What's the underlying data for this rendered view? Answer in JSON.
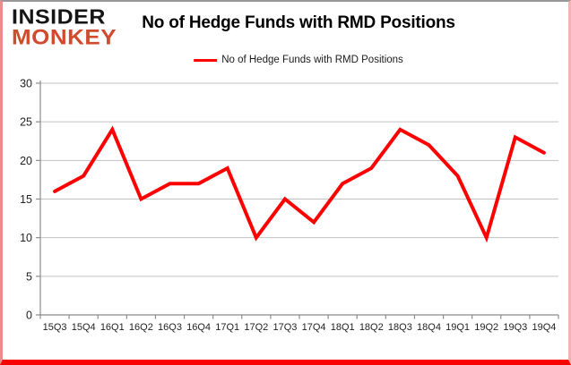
{
  "logo": {
    "line1": "INSIDER",
    "line2": "MONKEY"
  },
  "header": {
    "title": "No of Hedge Funds with RMD Positions"
  },
  "legend": {
    "label": "No of Hedge Funds with RMD Positions"
  },
  "chart_data": {
    "type": "line",
    "title": "No of Hedge Funds with RMD Positions",
    "categories": [
      "15Q3",
      "15Q4",
      "16Q1",
      "16Q2",
      "16Q3",
      "16Q4",
      "17Q1",
      "17Q2",
      "17Q3",
      "17Q4",
      "18Q1",
      "18Q2",
      "18Q3",
      "18Q4",
      "19Q1",
      "19Q2",
      "19Q3",
      "19Q4"
    ],
    "series": [
      {
        "name": "No of Hedge Funds with RMD Positions",
        "values": [
          16,
          18,
          24,
          15,
          17,
          17,
          19,
          10,
          15,
          12,
          17,
          19,
          24,
          22,
          18,
          10,
          23,
          21
        ]
      }
    ],
    "xlabel": "",
    "ylabel": "",
    "ylim": [
      0,
      30
    ],
    "ytick_step": 5,
    "yticks": [
      0,
      5,
      10,
      15,
      20,
      25,
      30
    ],
    "grid": true,
    "legend_position": "top-center",
    "colors": {
      "line": "#fe0000",
      "grid": "#c2c2c2",
      "axis": "#8c8c8c",
      "tick_text": "#1f1f1f",
      "logo_accent": "#d24a2e",
      "frame_bottom": "#fb0202"
    }
  }
}
